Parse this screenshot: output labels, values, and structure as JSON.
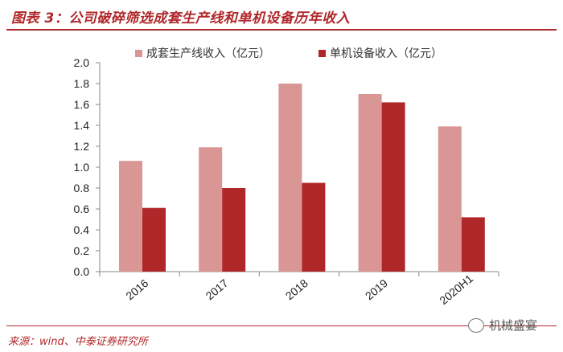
{
  "header": {
    "title": "图表 3：公司破碎筛选成套生产线和单机设备历年收入"
  },
  "footer": {
    "source": "来源：wind、中泰证券研究所"
  },
  "watermark": {
    "text": "机械盛宴"
  },
  "chart_data": {
    "type": "bar",
    "categories": [
      "2016",
      "2017",
      "2018",
      "2019",
      "2020H1"
    ],
    "series": [
      {
        "name": "成套生产线收入（亿元）",
        "values": [
          1.06,
          1.19,
          1.8,
          1.7,
          1.39
        ],
        "color": "#d99694"
      },
      {
        "name": "单机设备收入（亿元）",
        "values": [
          0.61,
          0.8,
          0.85,
          1.62,
          0.52
        ],
        "color": "#b0272a"
      }
    ],
    "ylim": [
      0,
      2.0
    ],
    "yticks": [
      "0.0",
      "0.2",
      "0.4",
      "0.6",
      "0.8",
      "1.0",
      "1.2",
      "1.4",
      "1.6",
      "1.8",
      "2.0"
    ],
    "xlabel": "",
    "ylabel": "",
    "legend": "top",
    "grid": false
  }
}
